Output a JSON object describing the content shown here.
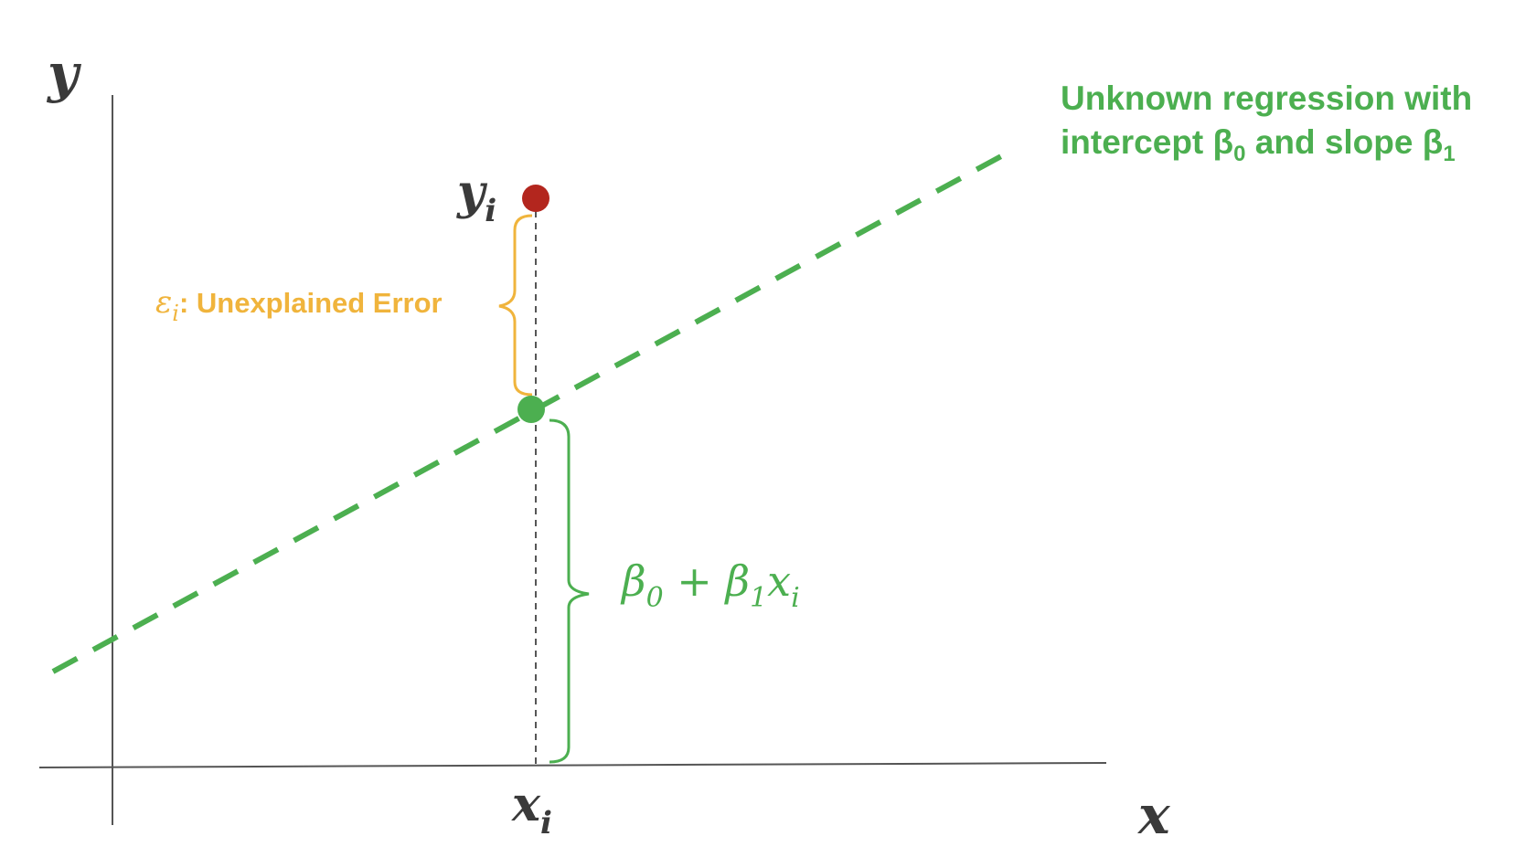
{
  "axes": {
    "x_label": "x",
    "y_label": "y"
  },
  "point": {
    "x_label_base": "x",
    "x_label_sub": "i",
    "y_label_base": "y",
    "y_label_sub": "i"
  },
  "error_label": {
    "symbol": "ε",
    "symbol_sub": "i",
    "text": ": Unexplained Error"
  },
  "regression_label": {
    "line1": "Unknown regression with",
    "line2_prefix": "intercept β",
    "line2_sub0": "0",
    "line2_mid": " and slope β",
    "line2_sub1": "1"
  },
  "fitted_label": {
    "beta": "β",
    "sub0": "0",
    "plus": " + ",
    "beta2": "β",
    "sub1": "1",
    "x": "x",
    "subi": "i"
  },
  "colors": {
    "axis": "#555555",
    "regression": "#4caf50",
    "observed_point": "#b3261e",
    "error": "#f0b43c",
    "text_dark": "#3a3a3a"
  }
}
